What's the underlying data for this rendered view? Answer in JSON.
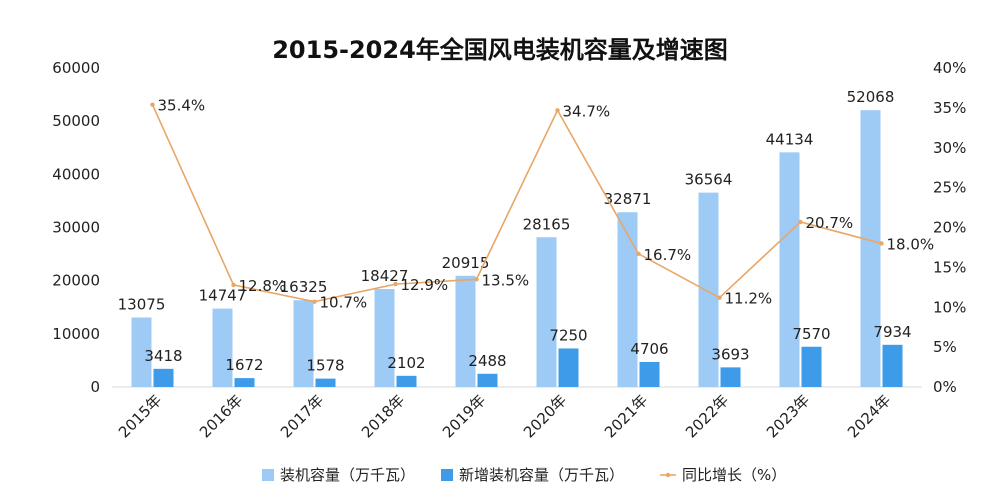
{
  "chart_data": {
    "type": "bar",
    "title": "2015-2024年全国风电装机容量及增速图",
    "categories": [
      "2015年",
      "2016年",
      "2017年",
      "2018年",
      "2019年",
      "2020年",
      "2021年",
      "2022年",
      "2023年",
      "2024年"
    ],
    "series": [
      {
        "name": "装机容量（万千瓦）",
        "type": "bar",
        "axis": "left",
        "color": "#9dcbf5",
        "values": [
          13075,
          14747,
          16325,
          18427,
          20915,
          28165,
          32871,
          36564,
          44134,
          52068
        ]
      },
      {
        "name": "新增装机容量（万千瓦）",
        "type": "bar",
        "axis": "left",
        "color": "#3d9be9",
        "values": [
          3418,
          1672,
          1578,
          2102,
          2488,
          7250,
          4706,
          3693,
          7570,
          7934
        ]
      },
      {
        "name": "同比增长（%）",
        "type": "line",
        "axis": "right",
        "color": "#e8a766",
        "values": [
          35.4,
          12.8,
          10.7,
          12.9,
          13.5,
          34.7,
          16.7,
          11.2,
          20.7,
          18.0
        ],
        "labels": [
          "35.4%",
          "12.8%",
          "10.7%",
          "12.9%",
          "13.5%",
          "34.7%",
          "16.7%",
          "11.2%",
          "20.7%",
          "18.0%"
        ]
      }
    ],
    "yleft": {
      "range": [
        0,
        60000
      ],
      "ticks": [
        "0",
        "10000",
        "20000",
        "30000",
        "40000",
        "50000",
        "60000"
      ]
    },
    "yright": {
      "range": [
        0,
        40
      ],
      "ticks": [
        "0%",
        "5%",
        "10%",
        "15%",
        "20%",
        "25%",
        "30%",
        "35%",
        "40%"
      ]
    },
    "grid": false,
    "legend_position": "bottom"
  }
}
